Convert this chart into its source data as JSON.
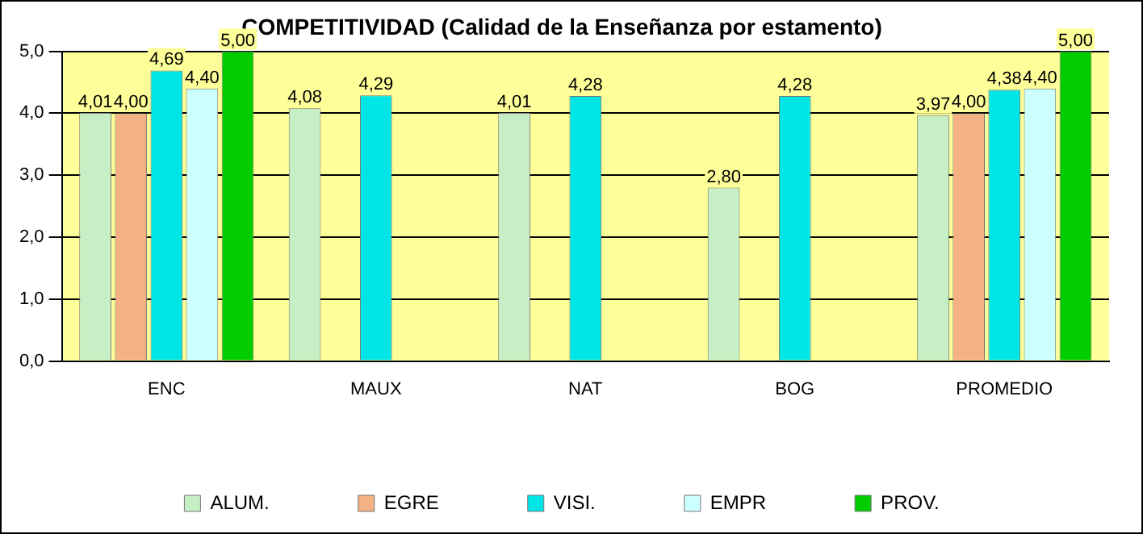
{
  "chart_data": {
    "type": "bar",
    "title": "COMPETITIVIDAD (Calidad de la Enseñanza por estamento)",
    "categories": [
      "ENC",
      "MAUX",
      "NAT",
      "BOG",
      "PROMEDIO"
    ],
    "series": [
      {
        "name": "ALUM.",
        "color": "#c6efc6",
        "values": [
          4.01,
          4.08,
          4.01,
          2.8,
          3.97
        ],
        "value_labels": [
          "4,01",
          "4,08",
          "4,01",
          "2,80",
          "3,97"
        ]
      },
      {
        "name": "EGRE",
        "color": "#f4b183",
        "values": [
          4.0,
          null,
          null,
          null,
          4.0
        ],
        "value_labels": [
          "4,00",
          null,
          null,
          null,
          "4,00"
        ]
      },
      {
        "name": "VISI.",
        "color": "#00e5e5",
        "values": [
          4.69,
          4.29,
          4.28,
          4.28,
          4.38
        ],
        "value_labels": [
          "4,69",
          "4,29",
          "4,28",
          "4,28",
          "4,38"
        ]
      },
      {
        "name": "EMPR",
        "color": "#ccffff",
        "values": [
          4.4,
          null,
          null,
          null,
          4.4
        ],
        "value_labels": [
          "4,40",
          null,
          null,
          null,
          "4,40"
        ]
      },
      {
        "name": "PROV.",
        "color": "#00cc00",
        "values": [
          5.0,
          null,
          null,
          null,
          5.0
        ],
        "value_labels": [
          "5,00",
          null,
          null,
          null,
          "5,00"
        ]
      }
    ],
    "ylim": [
      0,
      5
    ],
    "yticks": [
      {
        "value": 0,
        "label": "0,0"
      },
      {
        "value": 1,
        "label": "1,0"
      },
      {
        "value": 2,
        "label": "2,0"
      },
      {
        "value": 3,
        "label": "3,0"
      },
      {
        "value": 4,
        "label": "4,0"
      },
      {
        "value": 5,
        "label": "5,0"
      }
    ],
    "grid": "y",
    "legend": "bottom"
  }
}
